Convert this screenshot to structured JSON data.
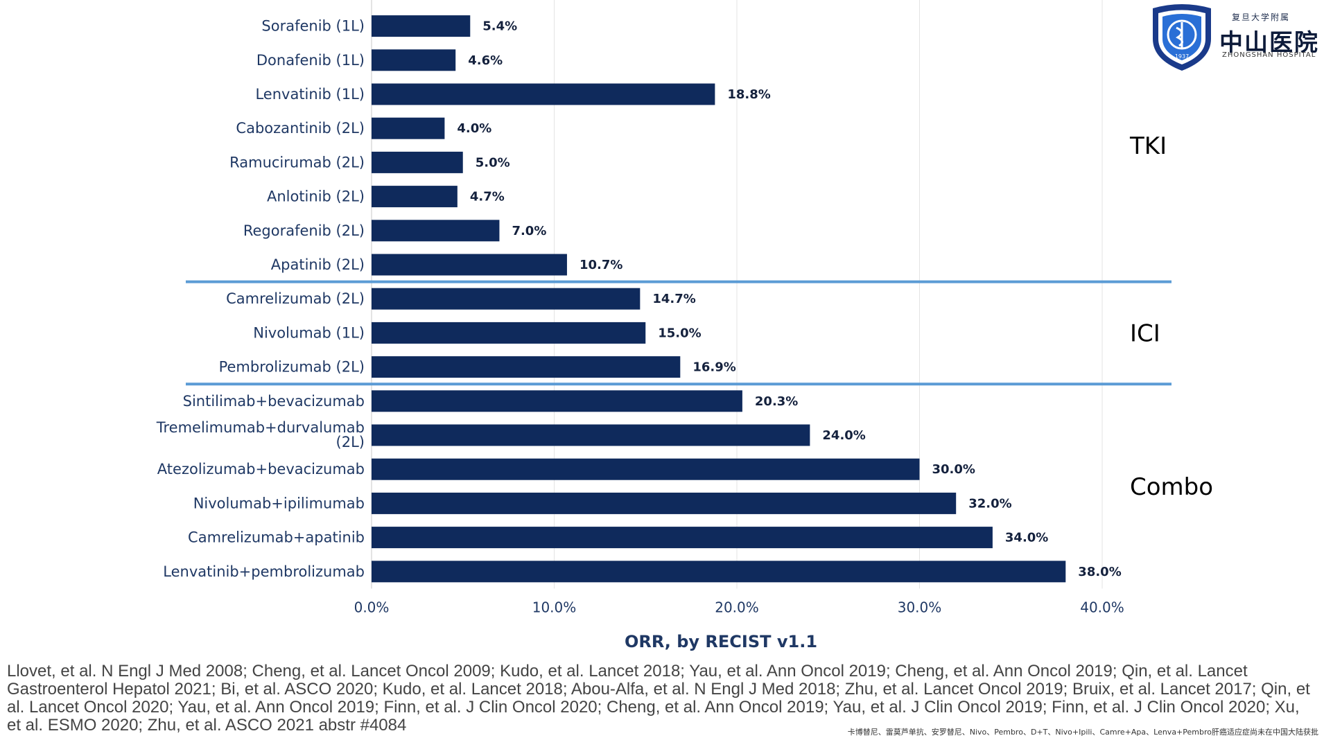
{
  "chart_data": {
    "type": "bar",
    "orientation": "horizontal",
    "categories": [
      "Sorafenib (1L)",
      "Donafenib (1L)",
      "Lenvatinib (1L)",
      "Cabozantinib (2L)",
      "Ramucirumab (2L)",
      "Anlotinib (2L)",
      "Regorafenib (2L)",
      "Apatinib (2L)",
      "Camrelizumab (2L)",
      "Nivolumab (1L)",
      "Pembrolizumab (2L)",
      "Sintilimab+bevacizumab",
      "Tremelimumab+durvalumab (2L)",
      "Atezolizumab+bevacizumab",
      "Nivolumab+ipilimumab",
      "Camrelizumab+apatinib",
      "Lenvatinib+pembrolizumab"
    ],
    "values": [
      5.4,
      4.6,
      18.8,
      4.0,
      5.0,
      4.7,
      7.0,
      10.7,
      14.7,
      15.0,
      16.9,
      20.3,
      24.0,
      30.0,
      32.0,
      34.0,
      38.0
    ],
    "value_labels": [
      "5.4%",
      "4.6%",
      "18.8%",
      "4.0%",
      "5.0%",
      "4.7%",
      "7.0%",
      "10.7%",
      "14.7%",
      "15.0%",
      "16.9%",
      "20.3%",
      "24.0%",
      "30.0%",
      "32.0%",
      "34.0%",
      "38.0%"
    ],
    "xlim": [
      0,
      40
    ],
    "xticks": [
      0,
      10,
      20,
      30,
      40
    ],
    "xtick_labels": [
      "0.0%",
      "10.0%",
      "20.0%",
      "30.0%",
      "40.0%"
    ],
    "xlabel": "ORR, by RECIST v1.1",
    "groups": [
      {
        "name": "TKI",
        "rows": [
          0,
          7
        ]
      },
      {
        "name": "ICI",
        "rows": [
          8,
          10
        ]
      },
      {
        "name": "Combo",
        "rows": [
          11,
          16
        ]
      }
    ],
    "grid": "vertical",
    "bar_color": "#0f2a5c",
    "separator_color": "#5b9bd5"
  },
  "references": "Llovet, et al. N Engl J Med 2008; Cheng, et al. Lancet Oncol 2009; Kudo, et al. Lancet 2018; Yau, et al. Ann Oncol 2019; Cheng, et al. Ann Oncol 2019; Qin, et al. Lancet Gastroenterol Hepatol 2021; Bi, et al. ASCO 2020; Kudo, et al. Lancet 2018; Abou-Alfa, et al. N Engl J Med 2018; Zhu, et al. Lancet Oncol 2019; Bruix, et al. Lancet 2017; Qin, et al. Lancet Oncol 2020; Yau, et al. Ann Oncol 2019; Finn, et al. J Clin Oncol 2020; Cheng, et al. Ann Oncol 2019; Yau, et al. J Clin Oncol 2019; Finn,  et al. J Clin Oncol 2020; Xu, et al. ESMO 2020; Zhu, et al. ASCO 2021 abstr #4084",
  "footnote": "卡博替尼、雷莫芦单抗、安罗替尼、Nivo、Pembro、D+T、Nivo+Ipili、Camre+Apa、Lenva+Pembro肝癌适应症尚未在中国大陆获批",
  "logo": {
    "university": "复旦大学附属",
    "name_cn": "中山医院",
    "name_en": "ZHONGSHAN HOSPITAL",
    "year": "1937",
    "icon": "hospital-shield-emblem"
  }
}
